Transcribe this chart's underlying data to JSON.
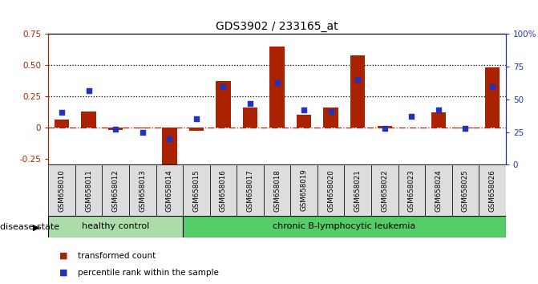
{
  "title": "GDS3902 / 233165_at",
  "samples": [
    "GSM658010",
    "GSM658011",
    "GSM658012",
    "GSM658013",
    "GSM658014",
    "GSM658015",
    "GSM658016",
    "GSM658017",
    "GSM658018",
    "GSM658019",
    "GSM658020",
    "GSM658021",
    "GSM658022",
    "GSM658023",
    "GSM658024",
    "GSM658025",
    "GSM658026"
  ],
  "bar_values": [
    0.06,
    0.13,
    -0.02,
    -0.01,
    -0.3,
    -0.03,
    0.37,
    0.16,
    0.65,
    0.1,
    0.16,
    0.58,
    0.01,
    0.0,
    0.12,
    -0.01,
    0.48
  ],
  "dot_values": [
    0.4,
    0.57,
    0.27,
    0.25,
    0.2,
    0.35,
    0.6,
    0.47,
    0.63,
    0.42,
    0.41,
    0.65,
    0.28,
    0.37,
    0.42,
    0.28,
    0.6
  ],
  "bar_color": "#AA2200",
  "dot_color": "#2233BB",
  "ylim_left": [
    -0.3,
    0.75
  ],
  "ylim_right": [
    0.0,
    1.0
  ],
  "hline_y": 0.0,
  "dotted_lines": [
    0.25,
    0.5
  ],
  "groups": [
    {
      "label": "healthy control",
      "color": "#AADDAA",
      "start": 0,
      "end": 5
    },
    {
      "label": "chronic B-lymphocytic leukemia",
      "color": "#55CC66",
      "start": 5,
      "end": 17
    }
  ],
  "disease_state_label": "disease state",
  "legend_bar_label": "transformed count",
  "legend_dot_label": "percentile rank within the sample",
  "right_ytick_labels": [
    "0",
    "25",
    "50",
    "75",
    "100%"
  ],
  "right_ytick_vals": [
    0.0,
    0.25,
    0.5,
    0.75,
    1.0
  ],
  "left_ytick_labels": [
    "-0.25",
    "0",
    "0.25",
    "0.50",
    "0.75"
  ],
  "left_ytick_vals": [
    -0.25,
    0.0,
    0.25,
    0.5,
    0.75
  ],
  "sample_box_color": "#DDDDDD",
  "xlim": [
    -0.5,
    16.5
  ]
}
